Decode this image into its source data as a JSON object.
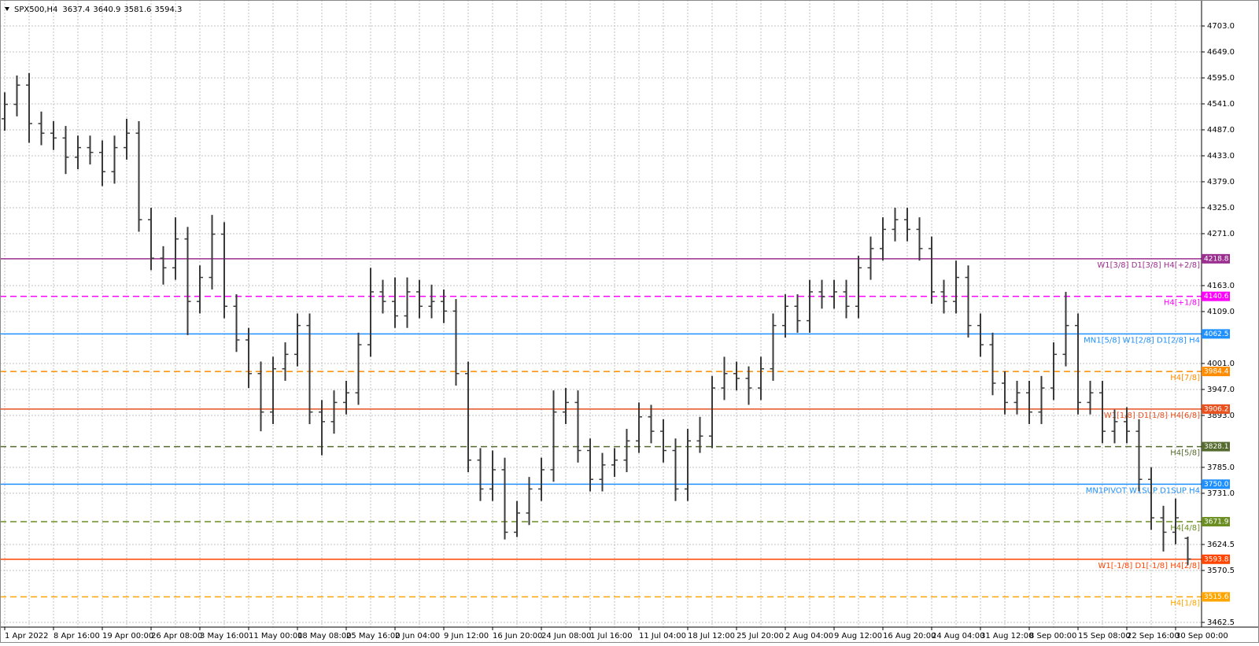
{
  "chart_data": {
    "type": "ohlc",
    "title": "SPX500,H4",
    "categories": [
      "1 Apr 2022",
      null,
      null,
      null,
      "8 Apr 16:00",
      null,
      null,
      null,
      "19 Apr 00:00",
      null,
      null,
      null,
      "26 Apr 08:00",
      null,
      null,
      null,
      "3 May 16:00",
      null,
      null,
      null,
      "11 May 00:00",
      null,
      null,
      null,
      "18 May 08:00",
      null,
      null,
      null,
      "25 May 16:00",
      null,
      null,
      null,
      "2 Jun 04:00",
      null,
      null,
      null,
      "9 Jun 12:00",
      null,
      null,
      null,
      "16 Jun 20:00",
      null,
      null,
      null,
      "24 Jun 08:00",
      null,
      null,
      null,
      "1 Jul 16:00",
      null,
      null,
      null,
      "11 Jul 04:00",
      null,
      null,
      null,
      "18 Jul 12:00",
      null,
      null,
      null,
      "25 Jul 20:00",
      null,
      null,
      null,
      "2 Aug 04:00",
      null,
      null,
      null,
      "9 Aug 12:00",
      null,
      null,
      null,
      "16 Aug 20:00",
      null,
      null,
      null,
      "24 Aug 04:00",
      null,
      null,
      null,
      "31 Aug 12:00",
      null,
      null,
      null,
      "8 Sep 00:00",
      null,
      null,
      null,
      "15 Sep 08:00",
      null,
      null,
      null,
      "22 Sep 16:00",
      null,
      null,
      null,
      "30 Sep 00:00",
      null
    ],
    "open": [
      4510,
      4540,
      4580,
      4500,
      4480,
      4470,
      4430,
      4450,
      4440,
      4400,
      4450,
      4480,
      4300,
      4220,
      4200,
      4260,
      4130,
      4180,
      4270,
      4120,
      4050,
      3980,
      3900,
      3990,
      4020,
      4080,
      3900,
      3880,
      3920,
      3940,
      4040,
      4150,
      4130,
      4100,
      4150,
      4120,
      4130,
      4110,
      3980,
      3800,
      3740,
      3780,
      3650,
      3690,
      3740,
      3780,
      3900,
      3920,
      3820,
      3760,
      3790,
      3800,
      3840,
      3890,
      3860,
      3820,
      3740,
      3840,
      3850,
      3950,
      3980,
      3970,
      3950,
      3990,
      4080,
      4120,
      4090,
      4150,
      4140,
      4150,
      4120,
      4200,
      4240,
      4280,
      4300,
      4280,
      4240,
      4150,
      4130,
      4180,
      4080,
      4040,
      3960,
      3920,
      3940,
      3900,
      3950,
      4020,
      4080,
      3920,
      3940,
      3860,
      3880,
      3860,
      3760,
      3680,
      3650,
      3637.4
    ],
    "high": [
      4565,
      4600,
      4605,
      4525,
      4505,
      4495,
      4475,
      4475,
      4465,
      4475,
      4510,
      4505,
      4325,
      4245,
      4305,
      4285,
      4205,
      4310,
      4295,
      4145,
      4075,
      4005,
      4015,
      4045,
      4105,
      4105,
      3925,
      3945,
      3965,
      4065,
      4200,
      4175,
      4180,
      4180,
      4175,
      4165,
      4155,
      4135,
      4005,
      3825,
      3820,
      3805,
      3715,
      3765,
      3805,
      3945,
      3950,
      3945,
      3845,
      3815,
      3825,
      3865,
      3920,
      3915,
      3885,
      3845,
      3865,
      3890,
      3975,
      4015,
      4005,
      3995,
      4015,
      4105,
      4145,
      4145,
      4175,
      4175,
      4175,
      4175,
      4225,
      4265,
      4305,
      4325,
      4325,
      4305,
      4265,
      4175,
      4215,
      4205,
      4105,
      4065,
      3985,
      3965,
      3965,
      3975,
      4045,
      4150,
      4105,
      3965,
      3965,
      3905,
      3910,
      3885,
      3785,
      3705,
      3720,
      3640.9
    ],
    "low": [
      4485,
      4515,
      4460,
      4455,
      4445,
      4395,
      4405,
      4415,
      4370,
      4375,
      4425,
      4275,
      4195,
      4165,
      4175,
      4060,
      4105,
      4155,
      4095,
      4025,
      3950,
      3860,
      3875,
      3965,
      3995,
      3875,
      3810,
      3855,
      3895,
      3915,
      4015,
      4105,
      4075,
      4075,
      4095,
      4095,
      4085,
      3955,
      3775,
      3715,
      3715,
      3635,
      3640,
      3665,
      3715,
      3755,
      3875,
      3795,
      3735,
      3735,
      3765,
      3775,
      3815,
      3835,
      3795,
      3715,
      3715,
      3815,
      3825,
      3925,
      3945,
      3915,
      3925,
      3965,
      4055,
      4065,
      4065,
      4115,
      4115,
      4095,
      4095,
      4175,
      4215,
      4255,
      4255,
      4215,
      4125,
      4105,
      4105,
      4055,
      4015,
      3935,
      3895,
      3895,
      3875,
      3875,
      3925,
      3995,
      3895,
      3895,
      3835,
      3835,
      3835,
      3735,
      3655,
      3610,
      3625,
      3581.6
    ],
    "close": [
      4540,
      4580,
      4500,
      4480,
      4470,
      4430,
      4450,
      4440,
      4400,
      4450,
      4480,
      4300,
      4220,
      4200,
      4260,
      4130,
      4180,
      4270,
      4120,
      4050,
      3980,
      3900,
      3990,
      4020,
      4080,
      3900,
      3880,
      3920,
      3940,
      4040,
      4150,
      4130,
      4100,
      4150,
      4120,
      4130,
      4110,
      3980,
      3800,
      3740,
      3780,
      3650,
      3690,
      3740,
      3780,
      3900,
      3920,
      3820,
      3760,
      3790,
      3800,
      3840,
      3890,
      3860,
      3820,
      3740,
      3840,
      3850,
      3950,
      3980,
      3970,
      3950,
      3990,
      4080,
      4120,
      4090,
      4150,
      4140,
      4150,
      4120,
      4200,
      4240,
      4280,
      4300,
      4280,
      4240,
      4150,
      4130,
      4180,
      4080,
      4040,
      3960,
      3920,
      3940,
      3900,
      3950,
      4020,
      4080,
      3920,
      3940,
      3860,
      3880,
      3860,
      3760,
      3680,
      3650,
      3680,
      3594.3
    ],
    "color": "#3a3a3a",
    "ylim": [
      3462.5,
      4703.0
    ],
    "yticks": [
      {
        "value": 4703,
        "label": "4703.0"
      },
      {
        "value": 4649,
        "label": "4649.0"
      },
      {
        "value": 4595,
        "label": "4595.0"
      },
      {
        "value": 4541,
        "label": "4541.0"
      },
      {
        "value": 4487,
        "label": "4487.0"
      },
      {
        "value": 4433,
        "label": "4433.0"
      },
      {
        "value": 4379,
        "label": "4379.0"
      },
      {
        "value": 4325,
        "label": "4325.0"
      },
      {
        "value": 4271,
        "label": "4271.0"
      },
      {
        "value": 4163,
        "label": "4163.0"
      },
      {
        "value": 4109,
        "label": "4109.0"
      },
      {
        "value": 4001,
        "label": "4001.0"
      },
      {
        "value": 3947,
        "label": "3947.0"
      },
      {
        "value": 3893,
        "label": "3893.0"
      },
      {
        "value": 3785,
        "label": "3785.0"
      },
      {
        "value": 3731,
        "label": "3731.0"
      },
      {
        "value": 3624.5,
        "label": "3624.5"
      },
      {
        "value": 3570.5,
        "label": "3570.5"
      },
      {
        "value": 3462.5,
        "label": "3462.5"
      }
    ],
    "grid": true,
    "levels": [
      {
        "value": 4218.8,
        "label": "W1[3/8] D1[3/8] H4[+2/8]",
        "color": "#9b2f8f",
        "dashed": false
      },
      {
        "value": 4140.6,
        "label": "H4[+1/8]",
        "color": "#ff00ff",
        "dashed": true
      },
      {
        "value": 4062.5,
        "label": "MN1[5/8] W1[2/8] D1[2/8] H4",
        "color": "#1e90ff",
        "dashed": false
      },
      {
        "value": 3984.4,
        "label": "H4[7/8]",
        "color": "#ff8c00",
        "dashed": true
      },
      {
        "value": 3906.2,
        "label": "W1[1/8] D1[1/8] H4[6/8]",
        "color": "#e8501e",
        "dashed": false
      },
      {
        "value": 3828.1,
        "label": "H4[5/8]",
        "color": "#556b2f",
        "dashed": true
      },
      {
        "value": 3750,
        "value_label": "3750.0",
        "label": "MN1PIVOT W1SUP D1SUP H4",
        "color": "#1e90ff",
        "dashed": false
      },
      {
        "value": 3671.9,
        "label": "H4[4/8]",
        "color": "#6b8e23",
        "dashed": true
      },
      {
        "value": 3593.8,
        "label": "W1[-1/8] D1[-1/8] H4[2/8]",
        "color": "#ff4500",
        "dashed": false
      },
      {
        "value": 3515.6,
        "label": "H4[1/8]",
        "color": "#ffa500",
        "dashed": true
      }
    ]
  }
}
